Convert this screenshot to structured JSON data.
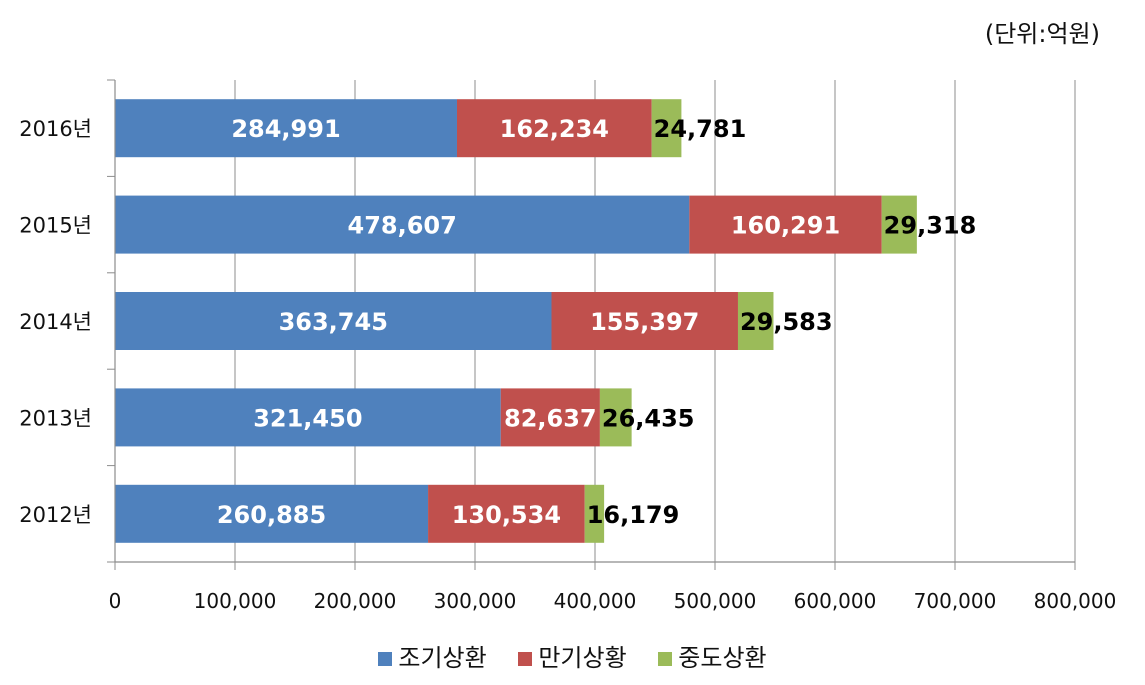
{
  "unit_label": "(단위:억원)",
  "legend": [
    {
      "label": "조기상환",
      "color": "#4F81BD"
    },
    {
      "label": "만기상황",
      "color": "#C0504D"
    },
    {
      "label": "중도상환",
      "color": "#9BBB59"
    }
  ],
  "chart_data": {
    "type": "bar",
    "orientation": "horizontal",
    "stacked": true,
    "categories": [
      "2016년",
      "2015년",
      "2014년",
      "2013년",
      "2012년"
    ],
    "series": [
      {
        "name": "조기상환",
        "color": "#4F81BD",
        "values": [
          284991,
          478607,
          363745,
          321450,
          260885
        ],
        "labels": [
          "284,991",
          "478,607",
          "363,745",
          "321,450",
          "260,885"
        ]
      },
      {
        "name": "만기상황",
        "color": "#C0504D",
        "values": [
          162234,
          160291,
          155397,
          82637,
          130534
        ],
        "labels": [
          "162,234",
          "160,291",
          "155,397",
          "82,637",
          "130,534"
        ]
      },
      {
        "name": "중도상환",
        "color": "#9BBB59",
        "values": [
          24781,
          29318,
          29583,
          26435,
          16179
        ],
        "labels": [
          "24,781",
          "29,318",
          "29,583",
          "26,435",
          "16,179"
        ]
      }
    ],
    "xlim": [
      0,
      800000
    ],
    "xticks": [
      0,
      100000,
      200000,
      300000,
      400000,
      500000,
      600000,
      700000,
      800000
    ],
    "xtick_labels": [
      "0",
      "100,000",
      "200,000",
      "300,000",
      "400,000",
      "500,000",
      "600,000",
      "700,000",
      "800,000"
    ],
    "grid": "vertical",
    "legend_position": "bottom"
  }
}
